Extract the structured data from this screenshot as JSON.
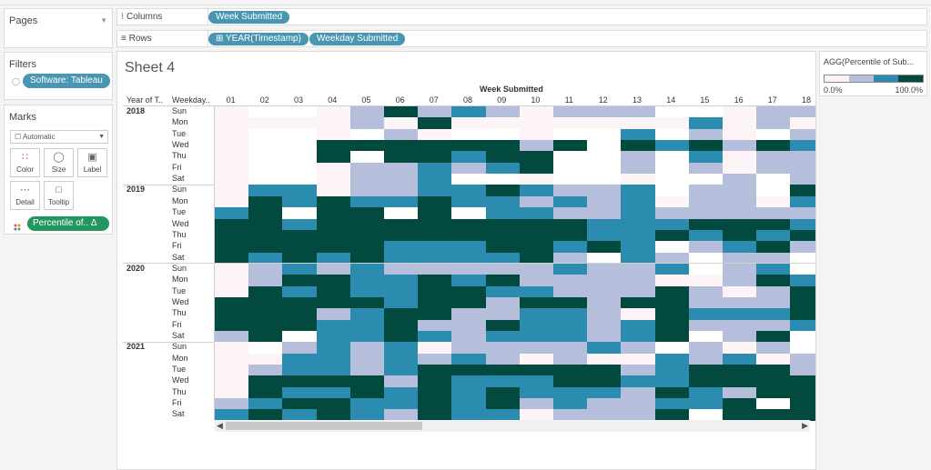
{
  "pages": {
    "title": "Pages"
  },
  "filters": {
    "title": "Filters",
    "pills": [
      "Software: Tableau"
    ]
  },
  "marks": {
    "title": "Marks",
    "type": "Automatic",
    "buttons": [
      "Color",
      "Size",
      "Label",
      "Detail",
      "Tooltip"
    ],
    "pill": "Percentile of.. Δ"
  },
  "shelves": {
    "columns_label": "Columns",
    "columns_pills": [
      "Week Submitted"
    ],
    "rows_label": "Rows",
    "rows_pills": [
      "⊞ YEAR(Timestamp)",
      "Weekday Submitted"
    ]
  },
  "sheet": {
    "title": "Sheet 4"
  },
  "legend": {
    "title": "AGG(Percentile of Sub...",
    "min": "0.0%",
    "max": "100.0%",
    "colors": [
      "#fcf1f6",
      "#b5bfdc",
      "#2b8cb0",
      "#024a3f"
    ]
  },
  "chart_data": {
    "type": "heatmap",
    "title": "Week Submitted",
    "x_header": "Week Submitted",
    "row_headers": [
      "Year of T..",
      "Weekday.."
    ],
    "weeks": [
      "01",
      "02",
      "03",
      "04",
      "05",
      "06",
      "07",
      "08",
      "09",
      "10",
      "11",
      "12",
      "13",
      "14",
      "15",
      "16",
      "17",
      "18"
    ],
    "years": [
      "2018",
      "2019",
      "2020",
      "2021"
    ],
    "weekdays": [
      "Sun",
      "Mon",
      "Tue",
      "Wed",
      "Thu",
      "Fri",
      "Sat"
    ],
    "scale": "percentile (0 = lightest, 3 = darkest)",
    "values": {
      "2018": [
        [
          0,
          0,
          0,
          0,
          1,
          3,
          1,
          2,
          1,
          0,
          1,
          1,
          1,
          0,
          0,
          0,
          1,
          1
        ],
        [
          0,
          0,
          0,
          0,
          1,
          0,
          3,
          0,
          0,
          0,
          0,
          0,
          0,
          0,
          2,
          0,
          1,
          0
        ],
        [
          0,
          0,
          0,
          0,
          0,
          1,
          0,
          0,
          0,
          0,
          0,
          0,
          2,
          0,
          1,
          0,
          0,
          1
        ],
        [
          0,
          0,
          0,
          3,
          3,
          3,
          3,
          3,
          3,
          1,
          3,
          0,
          3,
          2,
          3,
          1,
          3,
          2
        ],
        [
          0,
          0,
          0,
          3,
          0,
          3,
          3,
          2,
          3,
          3,
          0,
          0,
          1,
          0,
          2,
          0,
          1,
          1
        ],
        [
          0,
          0,
          0,
          0,
          1,
          1,
          2,
          1,
          2,
          3,
          0,
          0,
          1,
          0,
          1,
          0,
          1,
          1
        ],
        [
          0,
          0,
          0,
          0,
          1,
          1,
          2,
          0,
          0,
          0,
          0,
          0,
          0,
          0,
          0,
          1,
          0,
          1
        ]
      ],
      "2019": [
        [
          0,
          2,
          2,
          0,
          1,
          1,
          2,
          2,
          3,
          2,
          1,
          1,
          2,
          0,
          1,
          1,
          0,
          3
        ],
        [
          0,
          3,
          2,
          3,
          2,
          2,
          3,
          2,
          2,
          1,
          2,
          1,
          2,
          0,
          1,
          1,
          0,
          2
        ],
        [
          2,
          3,
          0,
          3,
          3,
          0,
          3,
          0,
          2,
          2,
          1,
          1,
          2,
          1,
          1,
          1,
          1,
          1
        ],
        [
          3,
          3,
          2,
          3,
          3,
          3,
          3,
          3,
          3,
          3,
          3,
          2,
          2,
          2,
          3,
          3,
          3,
          2
        ],
        [
          3,
          3,
          3,
          3,
          3,
          3,
          3,
          3,
          3,
          3,
          3,
          2,
          2,
          3,
          2,
          3,
          2,
          3
        ],
        [
          3,
          3,
          3,
          3,
          3,
          2,
          2,
          2,
          3,
          3,
          2,
          3,
          2,
          0,
          1,
          2,
          3,
          1
        ],
        [
          3,
          2,
          3,
          2,
          3,
          2,
          2,
          2,
          2,
          3,
          1,
          0,
          2,
          1,
          0,
          1,
          1,
          0
        ]
      ],
      "2020": [
        [
          0,
          1,
          2,
          1,
          2,
          1,
          1,
          1,
          1,
          1,
          2,
          1,
          1,
          2,
          0,
          1,
          2,
          0
        ],
        [
          0,
          1,
          3,
          3,
          2,
          2,
          3,
          2,
          3,
          1,
          1,
          1,
          1,
          0,
          0,
          1,
          3,
          2
        ],
        [
          0,
          3,
          2,
          3,
          2,
          2,
          3,
          3,
          2,
          2,
          1,
          1,
          1,
          3,
          1,
          0,
          1,
          3
        ],
        [
          3,
          3,
          3,
          3,
          3,
          2,
          3,
          3,
          1,
          3,
          3,
          1,
          3,
          3,
          1,
          1,
          1,
          3
        ],
        [
          3,
          3,
          3,
          1,
          2,
          3,
          3,
          1,
          1,
          2,
          2,
          1,
          0,
          3,
          2,
          2,
          2,
          3
        ],
        [
          3,
          3,
          3,
          2,
          2,
          3,
          1,
          1,
          3,
          2,
          2,
          1,
          2,
          3,
          1,
          1,
          1,
          2
        ],
        [
          1,
          3,
          0,
          2,
          2,
          3,
          2,
          1,
          2,
          2,
          2,
          1,
          2,
          3,
          0,
          1,
          3,
          0
        ]
      ],
      "2021": [
        [
          0,
          0,
          1,
          2,
          1,
          2,
          0,
          1,
          1,
          1,
          1,
          2,
          1,
          0,
          1,
          0,
          1,
          0
        ],
        [
          0,
          0,
          2,
          2,
          1,
          2,
          1,
          2,
          1,
          0,
          1,
          0,
          0,
          2,
          1,
          2,
          0,
          1
        ],
        [
          0,
          1,
          2,
          2,
          1,
          2,
          3,
          3,
          3,
          3,
          3,
          3,
          1,
          2,
          3,
          3,
          3,
          1
        ],
        [
          0,
          3,
          3,
          3,
          3,
          1,
          3,
          2,
          2,
          2,
          3,
          3,
          2,
          2,
          3,
          3,
          3,
          3
        ],
        [
          0,
          3,
          2,
          2,
          3,
          2,
          3,
          2,
          3,
          2,
          2,
          2,
          1,
          3,
          2,
          1,
          3,
          3
        ],
        [
          1,
          2,
          3,
          3,
          2,
          2,
          3,
          2,
          3,
          1,
          2,
          1,
          1,
          2,
          2,
          3,
          0,
          3
        ],
        [
          2,
          3,
          2,
          3,
          2,
          1,
          3,
          2,
          2,
          0,
          1,
          1,
          1,
          3,
          0,
          3,
          3,
          3
        ]
      ]
    }
  }
}
